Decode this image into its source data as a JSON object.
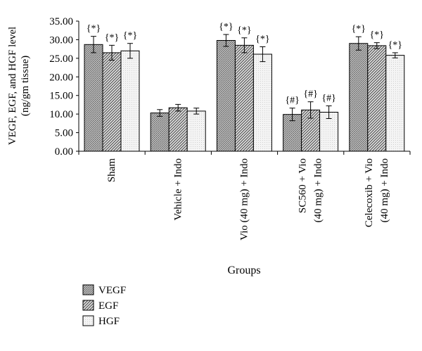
{
  "chart_data": {
    "type": "bar",
    "ylabel_lines": [
      "VEGF, EGF, and HGF level",
      "(ng/gm tissue)"
    ],
    "xlabel": "Groups",
    "ylim": [
      0,
      35
    ],
    "ytick_step": 5,
    "ytick_labels": [
      "0.00",
      "5.00",
      "10.00",
      "15.00",
      "20.00",
      "25.00",
      "30.00",
      "35.00"
    ],
    "categories": [
      [
        "Sham"
      ],
      [
        "Vehicle + Indo"
      ],
      [
        "Vio (40 mg) + Indo"
      ],
      [
        "SC560 + Vio",
        "(40 mg) + Indo"
      ],
      [
        "Celecoxib + Vio",
        "(40 mg) + Indo"
      ]
    ],
    "series": [
      {
        "name": "VEGF",
        "values": [
          28.7,
          10.3,
          29.8,
          9.9,
          29.0
        ],
        "errors": [
          2.2,
          0.9,
          1.6,
          1.7,
          1.8
        ]
      },
      {
        "name": "EGF",
        "values": [
          26.5,
          11.7,
          28.5,
          11.1,
          28.4
        ],
        "errors": [
          2.0,
          0.9,
          2.0,
          2.2,
          0.8
        ]
      },
      {
        "name": "HGF",
        "values": [
          27.0,
          10.8,
          26.1,
          10.5,
          25.8
        ],
        "errors": [
          2.0,
          0.8,
          2.0,
          1.7,
          0.7
        ]
      }
    ],
    "annotations": [
      [
        "{*}",
        "{*}",
        "{*}"
      ],
      [
        "",
        "",
        ""
      ],
      [
        "{*}",
        "{*}",
        "{*}"
      ],
      [
        "{#}",
        "{#}",
        "{#}"
      ],
      [
        "{*}",
        "{*}",
        "{*}"
      ]
    ],
    "legend_position": "bottom-left",
    "grid": false
  }
}
